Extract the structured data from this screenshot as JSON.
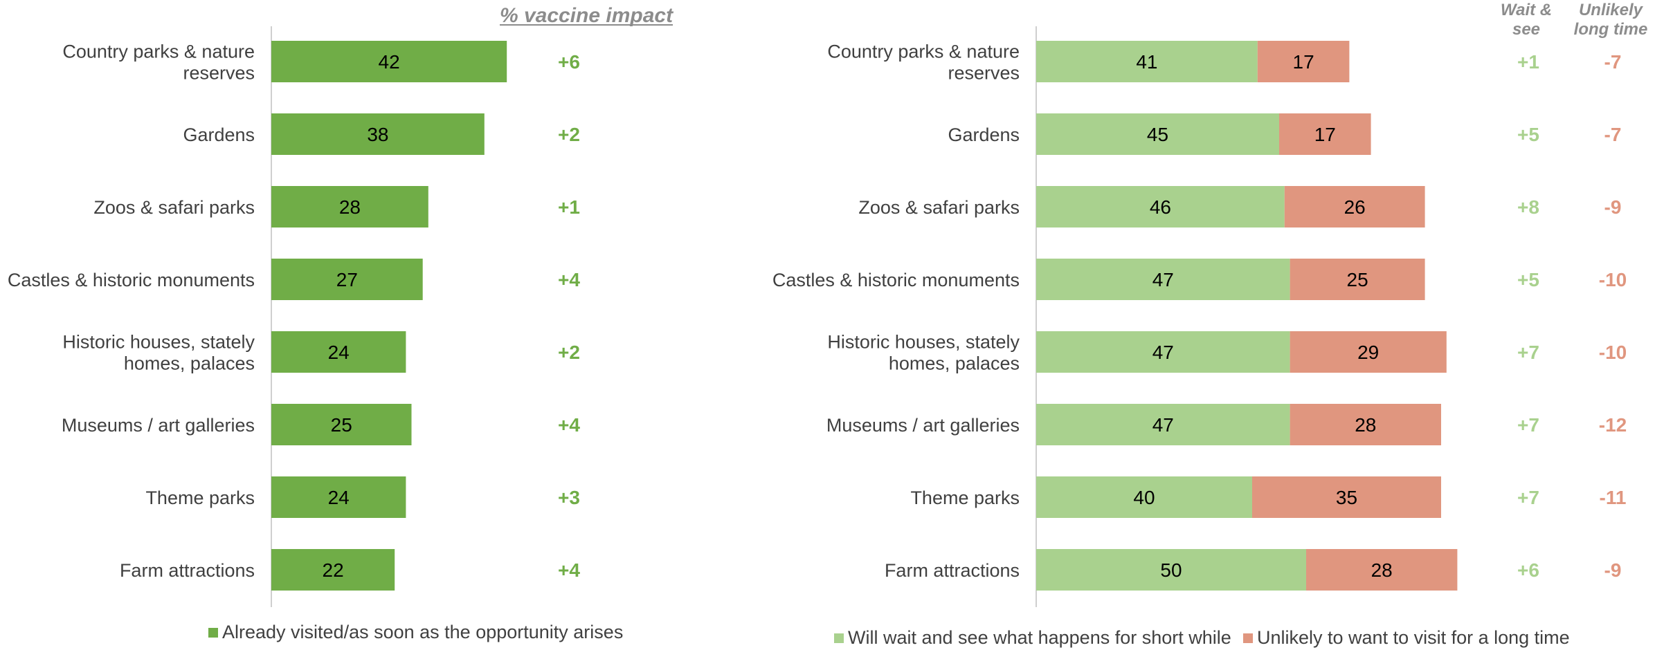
{
  "colors": {
    "already": "#70ad47",
    "wait": "#a9d18e",
    "unlikely": "#e0967f",
    "axis": "#bfbfbf",
    "category_text": "#404040",
    "header_text": "#8c8c8c"
  },
  "left_header": "% vaccine impact",
  "right_headers": {
    "wait": [
      "Wait &",
      "see"
    ],
    "unlikely": [
      "Unlikely",
      "long time"
    ]
  },
  "chart_data": [
    {
      "type": "bar",
      "orientation": "horizontal",
      "categories": [
        [
          "Country parks & nature",
          "reserves"
        ],
        [
          "Gardens"
        ],
        [
          "Zoos & safari parks"
        ],
        [
          "Castles & historic monuments"
        ],
        [
          "Historic houses, stately",
          "homes, palaces"
        ],
        [
          "Museums / art galleries"
        ],
        [
          "Theme parks"
        ],
        [
          "Farm attractions"
        ]
      ],
      "series": [
        {
          "name": "Already visited/as soon as the opportunity arises",
          "values": [
            42,
            38,
            28,
            27,
            24,
            25,
            24,
            22
          ]
        }
      ],
      "impact": [
        "+6",
        "+2",
        "+1",
        "+4",
        "+2",
        "+4",
        "+3",
        "+4"
      ],
      "xlim": [
        0,
        100
      ],
      "legend_position": "bottom"
    },
    {
      "type": "bar",
      "orientation": "horizontal",
      "stacked": true,
      "categories": [
        [
          "Country parks & nature",
          "reserves"
        ],
        [
          "Gardens"
        ],
        [
          "Zoos & safari parks"
        ],
        [
          "Castles & historic monuments"
        ],
        [
          "Historic houses, stately",
          "homes, palaces"
        ],
        [
          "Museums / art galleries"
        ],
        [
          "Theme parks"
        ],
        [
          "Farm attractions"
        ]
      ],
      "series": [
        {
          "name": "Will wait and see what happens for short while",
          "values": [
            41,
            45,
            46,
            47,
            47,
            47,
            40,
            50
          ]
        },
        {
          "name": "Unlikely to want to visit for a long time",
          "values": [
            17,
            17,
            26,
            25,
            29,
            28,
            35,
            28
          ]
        }
      ],
      "impact_wait": [
        "+1",
        "+5",
        "+8",
        "+5",
        "+7",
        "+7",
        "+7",
        "+6"
      ],
      "impact_unlikely": [
        "-7",
        "-7",
        "-9",
        "-10",
        "-10",
        "-12",
        "-11",
        "-9"
      ],
      "xlim": [
        0,
        100
      ],
      "legend_position": "bottom"
    }
  ]
}
